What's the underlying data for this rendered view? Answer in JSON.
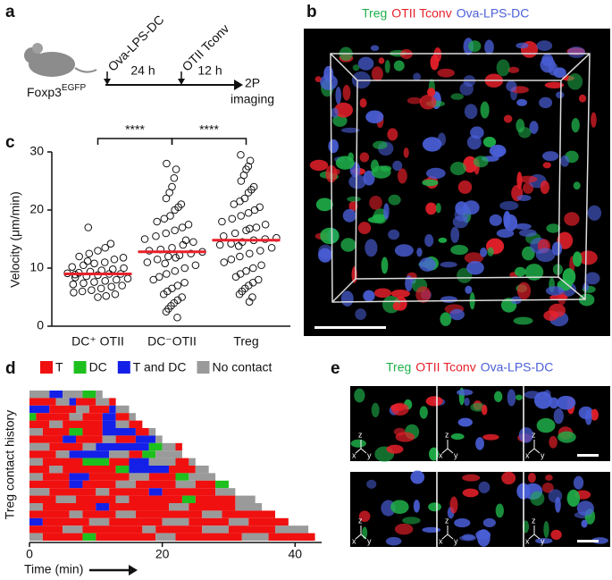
{
  "panel_labels": [
    "a",
    "b",
    "c",
    "d",
    "e"
  ],
  "schematic": {
    "mouse_label": "Foxp3",
    "mouse_label_sup": "EGFP",
    "injection_1": "Ova-LPS-DC",
    "injection_2": "OTII Tconv",
    "interval_1": "24 h",
    "interval_2": "12 h",
    "readout": [
      "2P",
      "imaging"
    ]
  },
  "image_b": {
    "legend": [
      {
        "name": "Treg",
        "color": "#1fb04a"
      },
      {
        "name": "OTII Tconv",
        "color": "#e8202a"
      },
      {
        "name": "Ova-LPS-DC",
        "color": "#4a5fd8"
      }
    ]
  },
  "chart_data": [
    {
      "type": "dot",
      "ylabel": "Velocity (μm/min)",
      "categories": [
        "DC⁺ OTII",
        "DC⁻OTII",
        "Treg"
      ],
      "values": [
        [
          17,
          14.2,
          13.5,
          13,
          12.5,
          12,
          11.8,
          11.5,
          11,
          10.8,
          10.5,
          10.2,
          10,
          9.8,
          9.6,
          9.4,
          9.2,
          9.1,
          9,
          9,
          8.8,
          8.6,
          8.4,
          8.2,
          8,
          7.8,
          7.6,
          7.4,
          7.2,
          7,
          6.8,
          6.5,
          6.2,
          6,
          5.8,
          5.5,
          5.2,
          5,
          11.2,
          8.9
        ],
        [
          28,
          27,
          25.5,
          24,
          23,
          22,
          21,
          20.5,
          20,
          19,
          18.5,
          18,
          17.5,
          17,
          16.5,
          16,
          15.5,
          15,
          14.5,
          14,
          13.5,
          13.2,
          13,
          12.8,
          12.5,
          12.2,
          12,
          11.5,
          11,
          10.5,
          10,
          9.5,
          9,
          8.5,
          8,
          7.5,
          7,
          6.5,
          6,
          5.5,
          5,
          4.5,
          4,
          3.5,
          3,
          2.5,
          1.5,
          14.8,
          11.8,
          10.8
        ],
        [
          29.5,
          28.5,
          27.5,
          27,
          26,
          25,
          24,
          23.5,
          23,
          22,
          21.5,
          21,
          20.5,
          20,
          19.5,
          19,
          18.5,
          18,
          17.5,
          17,
          16.5,
          16,
          15.5,
          15.2,
          15,
          14.8,
          14.5,
          14.2,
          14,
          13.5,
          13,
          12.5,
          12,
          11.5,
          11,
          10.5,
          10,
          9.5,
          9,
          8.5,
          8,
          7.5,
          7,
          6.5,
          6,
          5.5,
          5,
          4.2,
          16.8,
          13.8
        ]
      ],
      "medians": [
        9,
        12.8,
        14.8
      ],
      "median_color": "#e8202a",
      "ylim": [
        0,
        30
      ],
      "yticks": [
        0,
        10,
        20,
        30
      ],
      "significance": [
        {
          "from": 0,
          "to": 1,
          "label": "****"
        },
        {
          "from": 1,
          "to": 2,
          "label": "****"
        }
      ]
    },
    {
      "type": "raster",
      "xlabel": "Time (min)",
      "ylabel": "Treg contact history",
      "xlim": [
        0,
        44
      ],
      "xticks": [
        0,
        20,
        40
      ],
      "legend": [
        {
          "name": "T",
          "color": "#f01010"
        },
        {
          "name": "DC",
          "color": "#1ec01e"
        },
        {
          "name": "T and DC",
          "color": "#1420e8"
        },
        {
          "name": "No contact",
          "color": "#9a9a9a"
        }
      ],
      "rows": [
        {
          "states": [
            3,
            2,
            3,
            1,
            3
          ],
          "durations": [
            3,
            2,
            3,
            2,
            1
          ]
        },
        {
          "states": [
            0,
            3,
            2,
            0,
            3,
            0
          ],
          "durations": [
            4,
            2,
            1,
            3,
            2,
            1
          ]
        },
        {
          "states": [
            2,
            0,
            3,
            0,
            2,
            3
          ],
          "durations": [
            3,
            4,
            2,
            3,
            1,
            2
          ]
        },
        {
          "states": [
            1,
            0,
            3,
            0,
            2,
            0,
            3
          ],
          "durations": [
            1,
            5,
            2,
            3,
            2,
            2,
            1
          ]
        },
        {
          "states": [
            0,
            3,
            0,
            2,
            3,
            0
          ],
          "durations": [
            3,
            2,
            6,
            2,
            2,
            2
          ]
        },
        {
          "states": [
            3,
            0,
            1,
            0,
            2,
            0,
            3
          ],
          "durations": [
            2,
            4,
            2,
            3,
            5,
            2,
            1
          ]
        },
        {
          "states": [
            0,
            2,
            0,
            3,
            0,
            2,
            3
          ],
          "durations": [
            5,
            2,
            4,
            2,
            3,
            3,
            1
          ]
        },
        {
          "states": [
            3,
            0,
            3,
            2,
            1,
            3,
            0
          ],
          "durations": [
            3,
            5,
            2,
            8,
            2,
            2,
            1
          ]
        },
        {
          "states": [
            0,
            3,
            2,
            3,
            0,
            1,
            3
          ],
          "durations": [
            4,
            2,
            6,
            3,
            2,
            2,
            4
          ]
        },
        {
          "states": [
            3,
            0,
            1,
            0,
            2,
            3,
            0,
            3
          ],
          "durations": [
            2,
            6,
            4,
            3,
            3,
            4,
            2,
            1
          ]
        },
        {
          "states": [
            0,
            3,
            0,
            1,
            2,
            0,
            3
          ],
          "durations": [
            3,
            2,
            8,
            2,
            6,
            4,
            2
          ]
        },
        {
          "states": [
            3,
            0,
            2,
            0,
            3,
            0,
            1,
            3
          ],
          "durations": [
            2,
            4,
            3,
            6,
            3,
            4,
            2,
            4
          ]
        },
        {
          "states": [
            0,
            2,
            0,
            3,
            0,
            3,
            0,
            1
          ],
          "durations": [
            6,
            2,
            5,
            3,
            6,
            3,
            3,
            2
          ]
        },
        {
          "states": [
            3,
            0,
            3,
            0,
            2,
            0,
            3
          ],
          "durations": [
            3,
            7,
            2,
            6,
            2,
            8,
            3
          ]
        },
        {
          "states": [
            0,
            3,
            0,
            3,
            0,
            1,
            0,
            3
          ],
          "durations": [
            4,
            3,
            6,
            2,
            8,
            2,
            6,
            3
          ]
        },
        {
          "states": [
            3,
            0,
            2,
            0,
            3,
            0,
            3
          ],
          "durations": [
            2,
            8,
            2,
            9,
            3,
            7,
            4
          ]
        },
        {
          "states": [
            0,
            3,
            0,
            3,
            0,
            3,
            0
          ],
          "durations": [
            6,
            2,
            5,
            3,
            10,
            3,
            8
          ]
        },
        {
          "states": [
            2,
            0,
            3,
            0,
            3,
            0,
            3,
            0
          ],
          "durations": [
            2,
            7,
            3,
            8,
            4,
            6,
            3,
            6
          ]
        },
        {
          "states": [
            0,
            3,
            0,
            3,
            0,
            3,
            0,
            3
          ],
          "durations": [
            5,
            3,
            9,
            2,
            7,
            4,
            7,
            5
          ]
        },
        {
          "states": [
            3,
            0,
            1,
            0,
            3,
            0,
            3,
            0
          ],
          "durations": [
            2,
            6,
            2,
            9,
            3,
            10,
            4,
            7
          ]
        }
      ]
    }
  ],
  "image_e": {
    "legend": [
      {
        "name": "Treg",
        "color": "#1fb04a"
      },
      {
        "name": "OTII Tconv",
        "color": "#e8202a"
      },
      {
        "name": "Ova-LPS-DC",
        "color": "#4a5fd8"
      }
    ],
    "tripod_labels": [
      "x",
      "y",
      "z"
    ]
  }
}
